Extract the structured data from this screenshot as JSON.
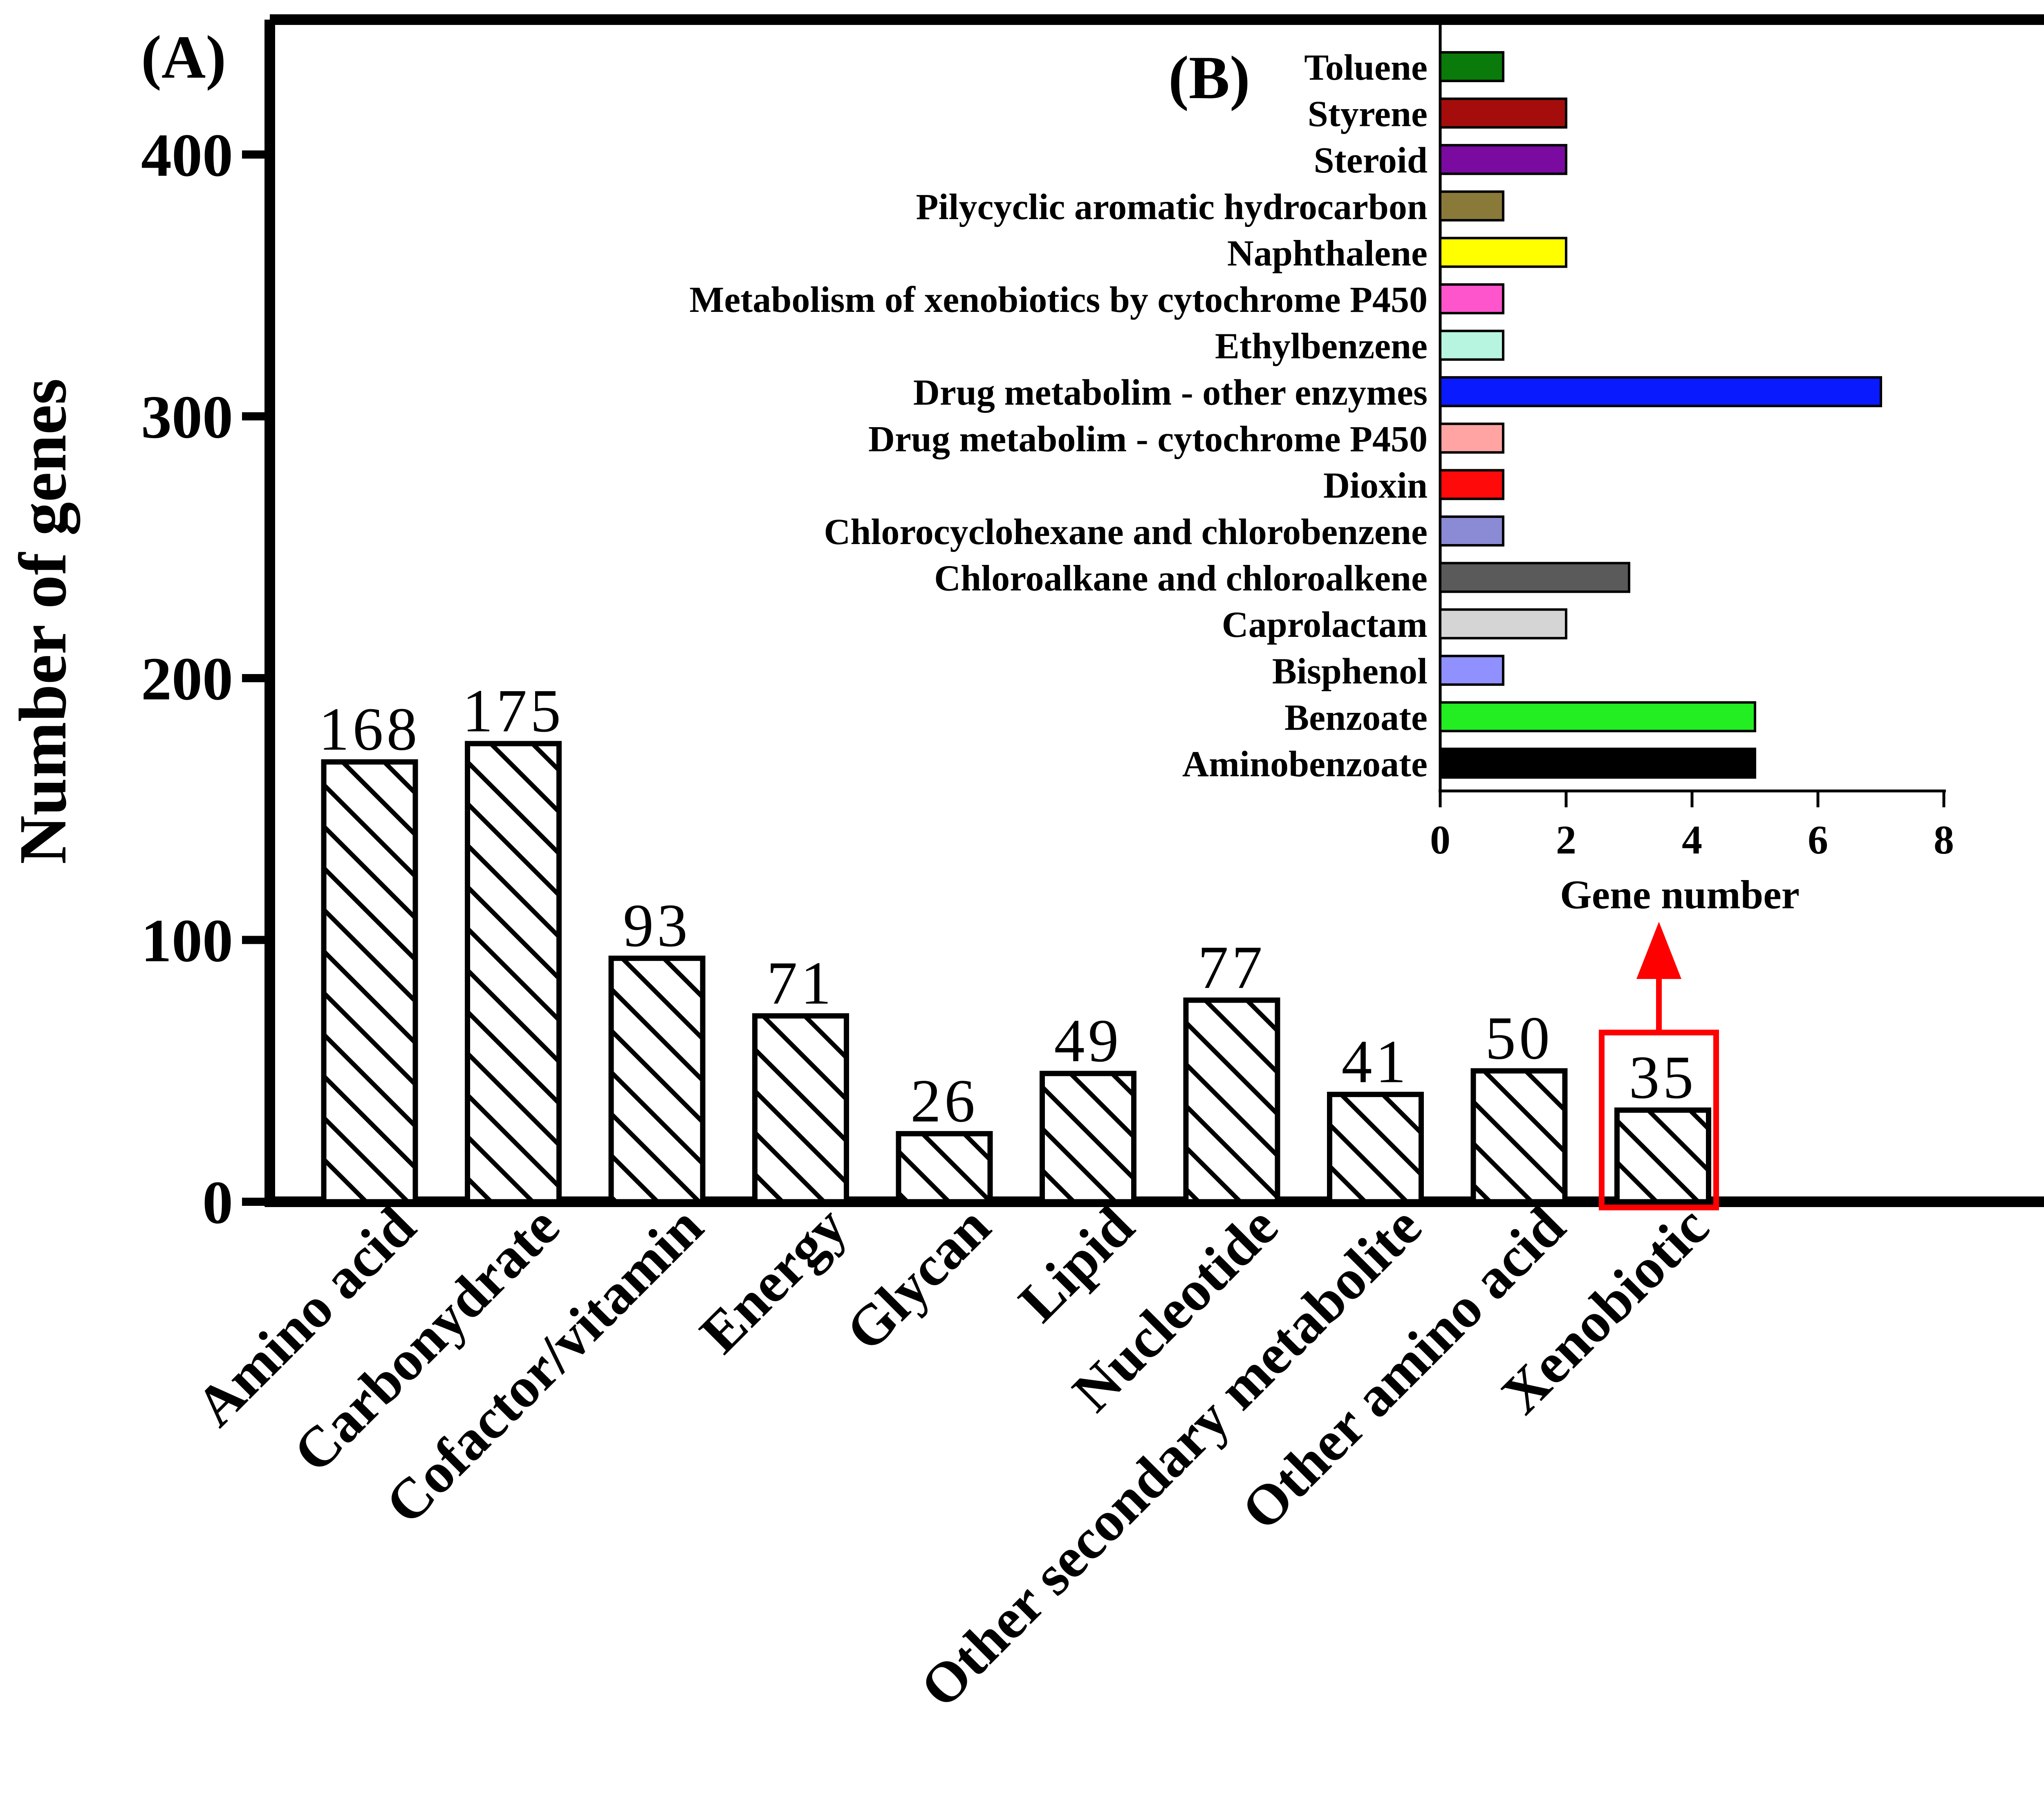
{
  "chart_data": [
    {
      "panel": "(A)",
      "type": "bar",
      "ylabel": "Number of  genes",
      "ylim": [
        0,
        450
      ],
      "yticks": [
        0,
        100,
        200,
        300,
        400
      ],
      "categories": [
        "Amino acid",
        "Carbonydrate",
        "Cofactor/vitamin",
        "Energy",
        "Glycan",
        "Lipid",
        "Nucleotide",
        "Other secondary metabolite",
        "Other amino acid",
        "Xenobiotic"
      ],
      "values": [
        168,
        175,
        93,
        71,
        26,
        49,
        77,
        41,
        50,
        35
      ],
      "value_labels": [
        "168",
        "175",
        "93",
        "71",
        "26",
        "49",
        "77",
        "41",
        "50",
        "35"
      ],
      "bar_fill": "diagonal hatch",
      "bar_color": "#000000",
      "highlight": {
        "category": "Xenobiotic",
        "color": "#ff0000"
      }
    },
    {
      "panel": "(B)",
      "type": "bar",
      "orientation": "horizontal",
      "xlabel": "Gene number",
      "xlim": [
        0,
        8
      ],
      "xticks": [
        0,
        2,
        4,
        6,
        8
      ],
      "categories": [
        "Toluene",
        "Styrene",
        "Steroid",
        "Pilycyclic aromatic hydrocarbon",
        "Naphthalene",
        "Metabolism of xenobiotics by cytochrome P450",
        "Ethylbenzene",
        "Drug metabolim - other enzymes",
        "Drug metabolim - cytochrome P450",
        "Dioxin",
        "Chlorocyclohexane and chlorobenzene",
        "Chloroalkane and chloroalkene",
        "Caprolactam",
        "Bisphenol",
        "Benzoate",
        "Aminobenzoate"
      ],
      "values": [
        1,
        2,
        2,
        1,
        2,
        1,
        1,
        7,
        1,
        1,
        1,
        3,
        2,
        1,
        5,
        5
      ],
      "colors": [
        "#0a7a0a",
        "#a50d0d",
        "#7a0aa0",
        "#8a7a3a",
        "#ffff00",
        "#ff55cc",
        "#b8f5e0",
        "#0a1aff",
        "#ffa3a3",
        "#ff0a0a",
        "#8a8ad5",
        "#5a5a5a",
        "#d5d5d5",
        "#9090ff",
        "#22ee22",
        "#000000"
      ]
    }
  ]
}
